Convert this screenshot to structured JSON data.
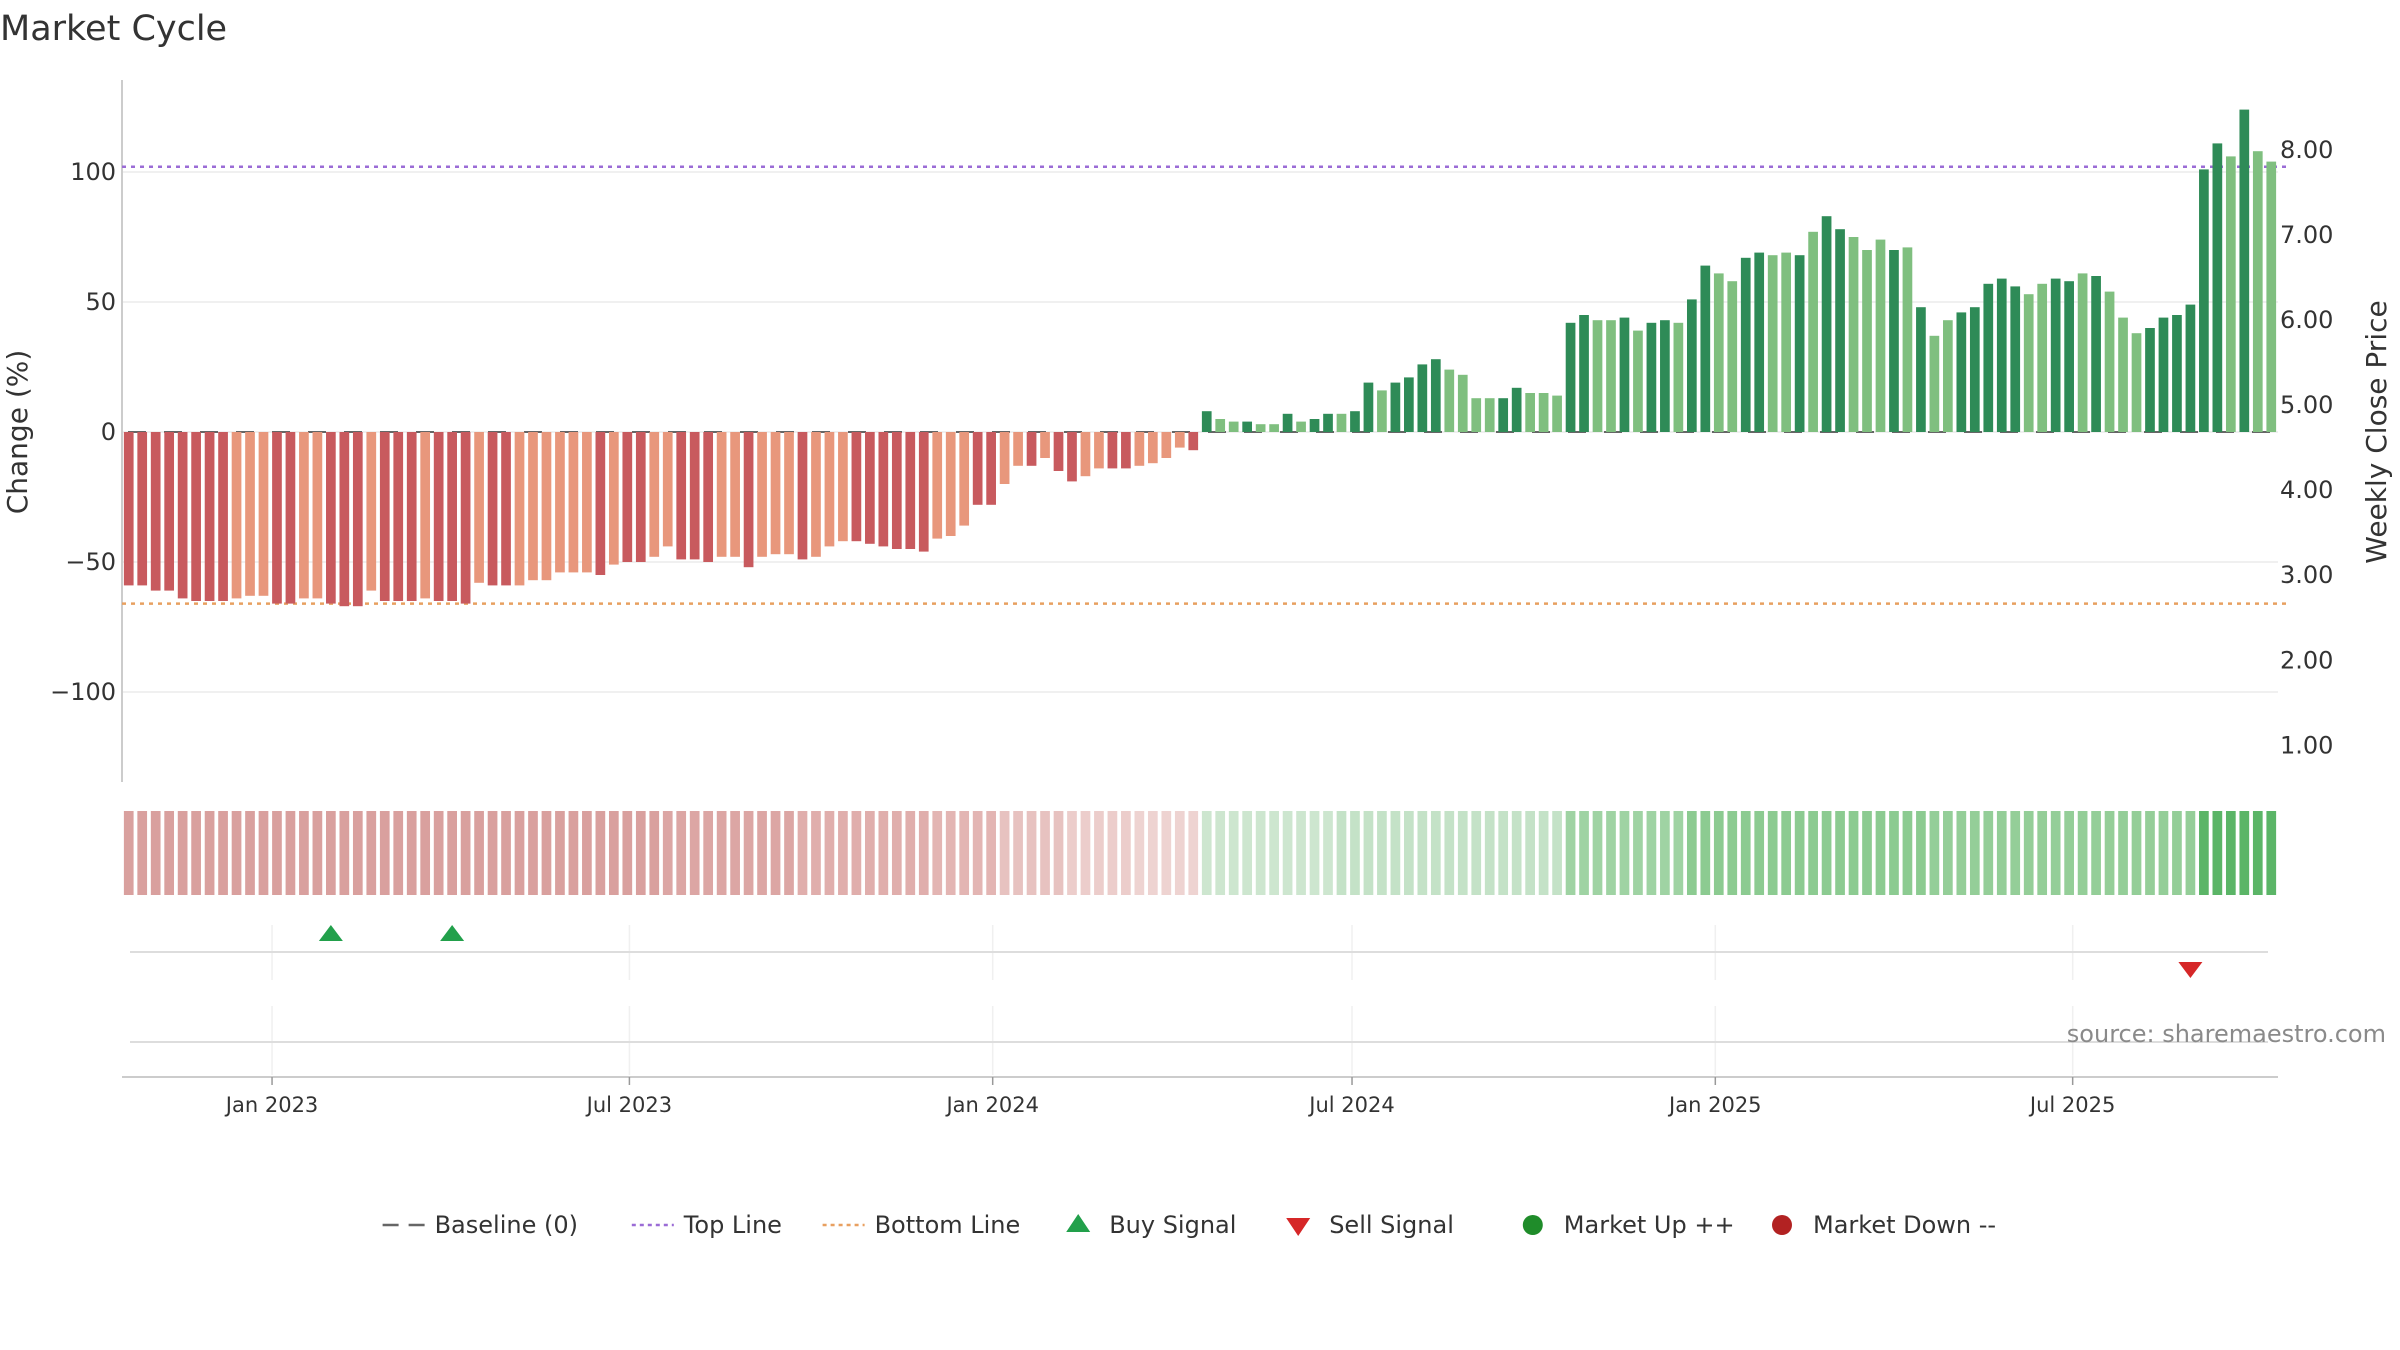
{
  "title": "Market Cycle",
  "source_text": "source: sharemaestro.com",
  "chart_data": {
    "type": "bar",
    "title": "Market Cycle",
    "ylabel": "Change (%)",
    "y2label": "Weekly Close Price",
    "ylim": [
      -135,
      135
    ],
    "y2lim": [
      0.57,
      8.82
    ],
    "yticks": [
      "−100",
      "−50",
      "0",
      "50",
      "100"
    ],
    "ytick_values": [
      -100,
      -50,
      0,
      50,
      100
    ],
    "y2ticks": [
      "1.00",
      "2.00",
      "3.00",
      "4.00",
      "5.00",
      "6.00",
      "7.00",
      "8.00"
    ],
    "y2tick_values": [
      1,
      2,
      3,
      4,
      5,
      6,
      7,
      8
    ],
    "x_start": "2022-10-17",
    "x_end": "2025-10-13",
    "xticks": [
      {
        "label": "Jan 2023",
        "date": "2023-01-01"
      },
      {
        "label": "Jul 2023",
        "date": "2023-07-01"
      },
      {
        "label": "Jan 2024",
        "date": "2024-01-01"
      },
      {
        "label": "Jul 2024",
        "date": "2024-07-01"
      },
      {
        "label": "Jan 2025",
        "date": "2025-01-01"
      },
      {
        "label": "Jul 2025",
        "date": "2025-07-01"
      }
    ],
    "top_line": 102,
    "bottom_line": -66,
    "baseline": 0,
    "grid": true,
    "legend_position": "bottom",
    "series": [
      {
        "name": "Change (%)",
        "values": [
          -59,
          -59,
          -61,
          -61,
          -64,
          -65,
          -65,
          -65,
          -64,
          -63,
          -63,
          -66,
          -66,
          -64,
          -64,
          -66,
          -67,
          -67,
          -61,
          -65,
          -65,
          -65,
          -64,
          -65,
          -65,
          -66,
          -58,
          -59,
          -59,
          -59,
          -57,
          -57,
          -54,
          -54,
          -54,
          -55,
          -51,
          -50,
          -50,
          -48,
          -44,
          -49,
          -49,
          -50,
          -48,
          -48,
          -52,
          -48,
          -47,
          -47,
          -49,
          -48,
          -44,
          -42,
          -42,
          -43,
          -44,
          -45,
          -45,
          -46,
          -41,
          -40,
          -36,
          -28,
          -28,
          -20,
          -13,
          -13,
          -10,
          -15,
          -19,
          -17,
          -14,
          -14,
          -14,
          -13,
          -12,
          -10,
          -6,
          -7,
          8,
          5,
          4,
          4,
          3,
          3,
          7,
          4,
          5,
          7,
          7,
          8,
          19,
          16,
          19,
          21,
          26,
          28,
          24,
          22,
          13,
          13,
          13,
          17,
          15,
          15,
          14,
          42,
          45,
          43,
          43,
          44,
          39,
          42,
          43,
          42,
          51,
          64,
          61,
          58,
          67,
          69,
          68,
          69,
          68,
          77,
          83,
          78,
          75,
          70,
          74,
          70,
          71,
          48,
          37,
          43,
          46,
          48,
          57,
          59,
          56,
          53,
          57,
          59,
          58,
          61,
          60,
          54,
          44,
          38,
          40,
          44,
          45,
          49,
          101,
          111,
          106,
          124,
          108,
          104
        ],
        "colors": [
          "#c85a5e",
          "#c85a5e",
          "#c85a5e",
          "#c85a5e",
          "#c85a5e",
          "#c85a5e",
          "#c85a5e",
          "#c85a5e",
          "#e8977c",
          "#e8977c",
          "#e8977c",
          "#c85a5e",
          "#c85a5e",
          "#e8977c",
          "#e8977c",
          "#c85a5e",
          "#c85a5e",
          "#c85a5e",
          "#e8977c",
          "#c85a5e",
          "#c85a5e",
          "#c85a5e",
          "#e8977c",
          "#c85a5e",
          "#c85a5e",
          "#c85a5e",
          "#e8977c",
          "#c85a5e",
          "#c85a5e",
          "#e8977c",
          "#e8977c",
          "#e8977c",
          "#e8977c",
          "#e8977c",
          "#e8977c",
          "#c85a5e",
          "#e8977c",
          "#c85a5e",
          "#c85a5e",
          "#e8977c",
          "#e8977c",
          "#c85a5e",
          "#c85a5e",
          "#c85a5e",
          "#e8977c",
          "#e8977c",
          "#c85a5e",
          "#e8977c",
          "#e8977c",
          "#e8977c",
          "#c85a5e",
          "#e8977c",
          "#e8977c",
          "#e8977c",
          "#c85a5e",
          "#c85a5e",
          "#c85a5e",
          "#c85a5e",
          "#c85a5e",
          "#c85a5e",
          "#e8977c",
          "#e8977c",
          "#e8977c",
          "#c85a5e",
          "#c85a5e",
          "#e8977c",
          "#e8977c",
          "#c85a5e",
          "#e8977c",
          "#c85a5e",
          "#c85a5e",
          "#e8977c",
          "#e8977c",
          "#c85a5e",
          "#c85a5e",
          "#e8977c",
          "#e8977c",
          "#e8977c",
          "#e8977c",
          "#c85a5e",
          "#2e8b57",
          "#7fbf7f",
          "#7fbf7f",
          "#2e8b57",
          "#7fbf7f",
          "#7fbf7f",
          "#2e8b57",
          "#7fbf7f",
          "#2e8b57",
          "#2e8b57",
          "#7fbf7f",
          "#2e8b57",
          "#2e8b57",
          "#7fbf7f",
          "#2e8b57",
          "#2e8b57",
          "#2e8b57",
          "#2e8b57",
          "#7fbf7f",
          "#7fbf7f",
          "#7fbf7f",
          "#7fbf7f",
          "#2e8b57",
          "#2e8b57",
          "#7fbf7f",
          "#7fbf7f",
          "#7fbf7f",
          "#2e8b57",
          "#2e8b57",
          "#7fbf7f",
          "#7fbf7f",
          "#2e8b57",
          "#7fbf7f",
          "#2e8b57",
          "#2e8b57",
          "#7fbf7f",
          "#2e8b57",
          "#2e8b57",
          "#7fbf7f",
          "#7fbf7f",
          "#2e8b57",
          "#2e8b57",
          "#7fbf7f",
          "#7fbf7f",
          "#2e8b57",
          "#7fbf7f",
          "#2e8b57",
          "#2e8b57",
          "#7fbf7f",
          "#7fbf7f",
          "#7fbf7f",
          "#2e8b57",
          "#7fbf7f",
          "#2e8b57",
          "#7fbf7f",
          "#7fbf7f",
          "#2e8b57",
          "#2e8b57",
          "#2e8b57",
          "#2e8b57",
          "#2e8b57",
          "#7fbf7f",
          "#7fbf7f",
          "#2e8b57",
          "#2e8b57",
          "#7fbf7f",
          "#2e8b57",
          "#7fbf7f",
          "#7fbf7f",
          "#7fbf7f",
          "#2e8b57",
          "#2e8b57",
          "#2e8b57",
          "#2e8b57",
          "#2e8b57",
          "#2e8b57",
          "#7fbf7f",
          "#2e8b57",
          "#7fbf7f",
          "#7fbf7f"
        ]
      }
    ],
    "cycle_band_colors": [
      "#d9a09e",
      "#d9a09e",
      "#d9a09e",
      "#d9a09e",
      "#d9a09e",
      "#d9a09e",
      "#d9a09e",
      "#d9a09e",
      "#d9a09e",
      "#d9a09e",
      "#d9a09e",
      "#d9a09e",
      "#d9a09e",
      "#d9a09e",
      "#d9a09e",
      "#d9a09e",
      "#d9a09e",
      "#d9a09e",
      "#d9a09e",
      "#d9a09e",
      "#d9a09e",
      "#d9a09e",
      "#d9a09e",
      "#d9a09e",
      "#d9a09e",
      "#d9a09e",
      "#d9a09e",
      "#d9a09e",
      "#d9a09e",
      "#d9a09e",
      "#d9a09e",
      "#d9a09e",
      "#d9a09e",
      "#d9a09e",
      "#d9a09e",
      "#d9a09e",
      "#d9a09e",
      "#d9a09e",
      "#d9a09e",
      "#d9a09e",
      "#dca6a4",
      "#dca6a4",
      "#dca6a4",
      "#dca6a4",
      "#dca6a4",
      "#dca6a4",
      "#dca6a4",
      "#dca6a4",
      "#dca6a4",
      "#dca6a4",
      "#e0aeac",
      "#e0aeac",
      "#e0aeac",
      "#e0aeac",
      "#e0aeac",
      "#e0aeac",
      "#e0aeac",
      "#e0aeac",
      "#e0aeac",
      "#e0aeac",
      "#e3b5b3",
      "#e3b5b3",
      "#e3b5b3",
      "#e3b5b3",
      "#e3b5b3",
      "#e7c2c0",
      "#e7c2c0",
      "#e7c2c0",
      "#e7c2c0",
      "#e7c2c0",
      "#eccdcb",
      "#eccdcb",
      "#eccdcb",
      "#eccdcb",
      "#eccdcb",
      "#eed3d1",
      "#eed3d1",
      "#eed3d1",
      "#eed3d1",
      "#eed3d1",
      "#cde6cf",
      "#cde6cf",
      "#cde6cf",
      "#cde6cf",
      "#cde6cf",
      "#cde6cf",
      "#cde6cf",
      "#cde6cf",
      "#cde6cf",
      "#cde6cf",
      "#c4e2c7",
      "#c4e2c7",
      "#c4e2c7",
      "#c4e2c7",
      "#c4e2c7",
      "#c4e2c7",
      "#c4e2c7",
      "#c4e2c7",
      "#c4e2c7",
      "#c4e2c7",
      "#c4e2c7",
      "#c4e2c7",
      "#c4e2c7",
      "#c4e2c7",
      "#c4e2c7",
      "#c4e2c7",
      "#c4e2c7",
      "#9fd3a3",
      "#9fd3a3",
      "#9fd3a3",
      "#9fd3a3",
      "#9fd3a3",
      "#9fd3a3",
      "#9fd3a3",
      "#9fd3a3",
      "#9fd3a3",
      "#8ccb91",
      "#8ccb91",
      "#8ccb91",
      "#8ccb91",
      "#8ccb91",
      "#8ccb91",
      "#8ccb91",
      "#8ccb91",
      "#8ccb91",
      "#8ccb91",
      "#8ccb91",
      "#8ccb91",
      "#8ccb91",
      "#8ccb91",
      "#8ccb91",
      "#8ccb91",
      "#8ccb91",
      "#8ccb91",
      "#94ce98",
      "#94ce98",
      "#94ce98",
      "#94ce98",
      "#94ce98",
      "#94ce98",
      "#94ce98",
      "#94ce98",
      "#94ce98",
      "#94ce98",
      "#94ce98",
      "#94ce98",
      "#94ce98",
      "#94ce98",
      "#94ce98",
      "#94ce98",
      "#94ce98",
      "#94ce98",
      "#94ce98",
      "#94ce98",
      "#5bb567",
      "#5bb567",
      "#5bb567",
      "#5bb567",
      "#5bb567",
      "#5bb567"
    ],
    "buy_signals": [
      15,
      24
    ],
    "sell_signals": [
      153
    ],
    "legend": [
      {
        "label": "Baseline (0)",
        "symbol": "dash",
        "color": "#666666"
      },
      {
        "label": "Top Line",
        "symbol": "dot",
        "color": "#9b6cd6"
      },
      {
        "label": "Bottom Line",
        "symbol": "dot",
        "color": "#e8a060"
      },
      {
        "label": "Buy Signal",
        "symbol": "triangle-up",
        "color": "#22a04b"
      },
      {
        "label": "Sell Signal",
        "symbol": "triangle-down",
        "color": "#d62728"
      },
      {
        "label": "Market Up ++",
        "symbol": "circle",
        "color": "#1f8c2a"
      },
      {
        "label": "Market Down --",
        "symbol": "circle",
        "color": "#b22222"
      }
    ]
  }
}
